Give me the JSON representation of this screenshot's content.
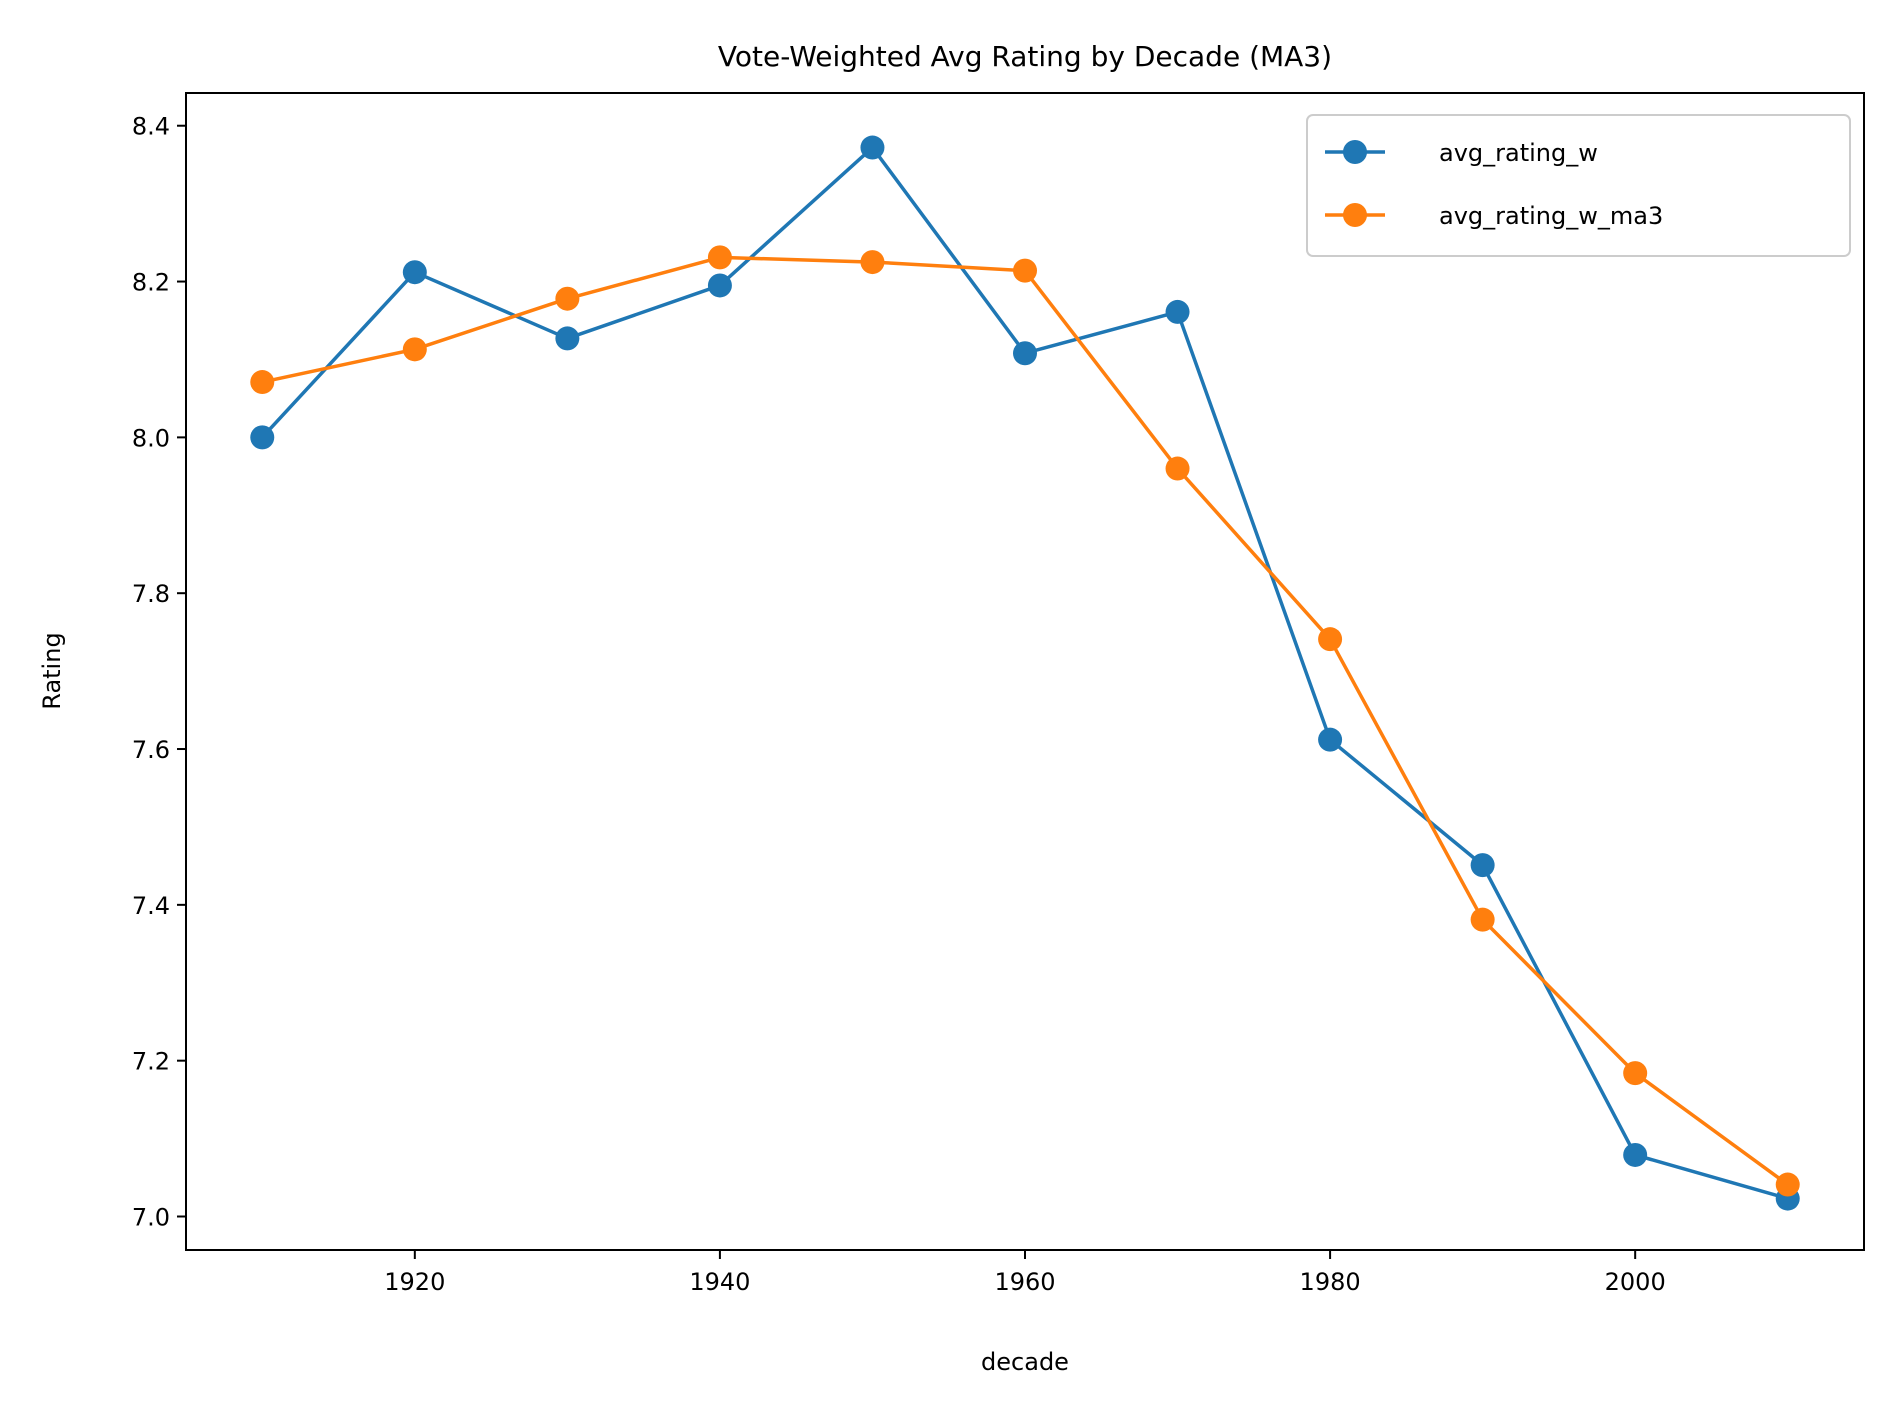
{
  "chart_data": {
    "type": "line",
    "title": "Vote-Weighted Avg Rating by Decade (MA3)",
    "xlabel": "decade",
    "ylabel": "Rating",
    "x": [
      1910,
      1920,
      1930,
      1940,
      1950,
      1960,
      1970,
      1980,
      1990,
      2000,
      2010
    ],
    "xlim": [
      1905,
      2015
    ],
    "ylim": [
      6.957,
      8.442
    ],
    "xticks": [
      1920,
      1940,
      1960,
      1980,
      2000
    ],
    "yticks": [
      7.0,
      7.2,
      7.4,
      7.6,
      7.8,
      8.0,
      8.2,
      8.4
    ],
    "grid": false,
    "legend_position": "top-right",
    "series": [
      {
        "name": "avg_rating_w",
        "color": "#1f77b4",
        "marker": "circle",
        "values": [
          8.0,
          8.212,
          8.127,
          8.195,
          8.372,
          8.108,
          8.161,
          7.612,
          7.451,
          7.079,
          7.023
        ]
      },
      {
        "name": "avg_rating_w_ma3",
        "color": "#ff7f0e",
        "marker": "circle",
        "values": [
          8.071,
          8.113,
          8.178,
          8.231,
          8.225,
          8.214,
          7.96,
          7.741,
          7.381,
          7.184,
          7.041
        ]
      }
    ]
  }
}
